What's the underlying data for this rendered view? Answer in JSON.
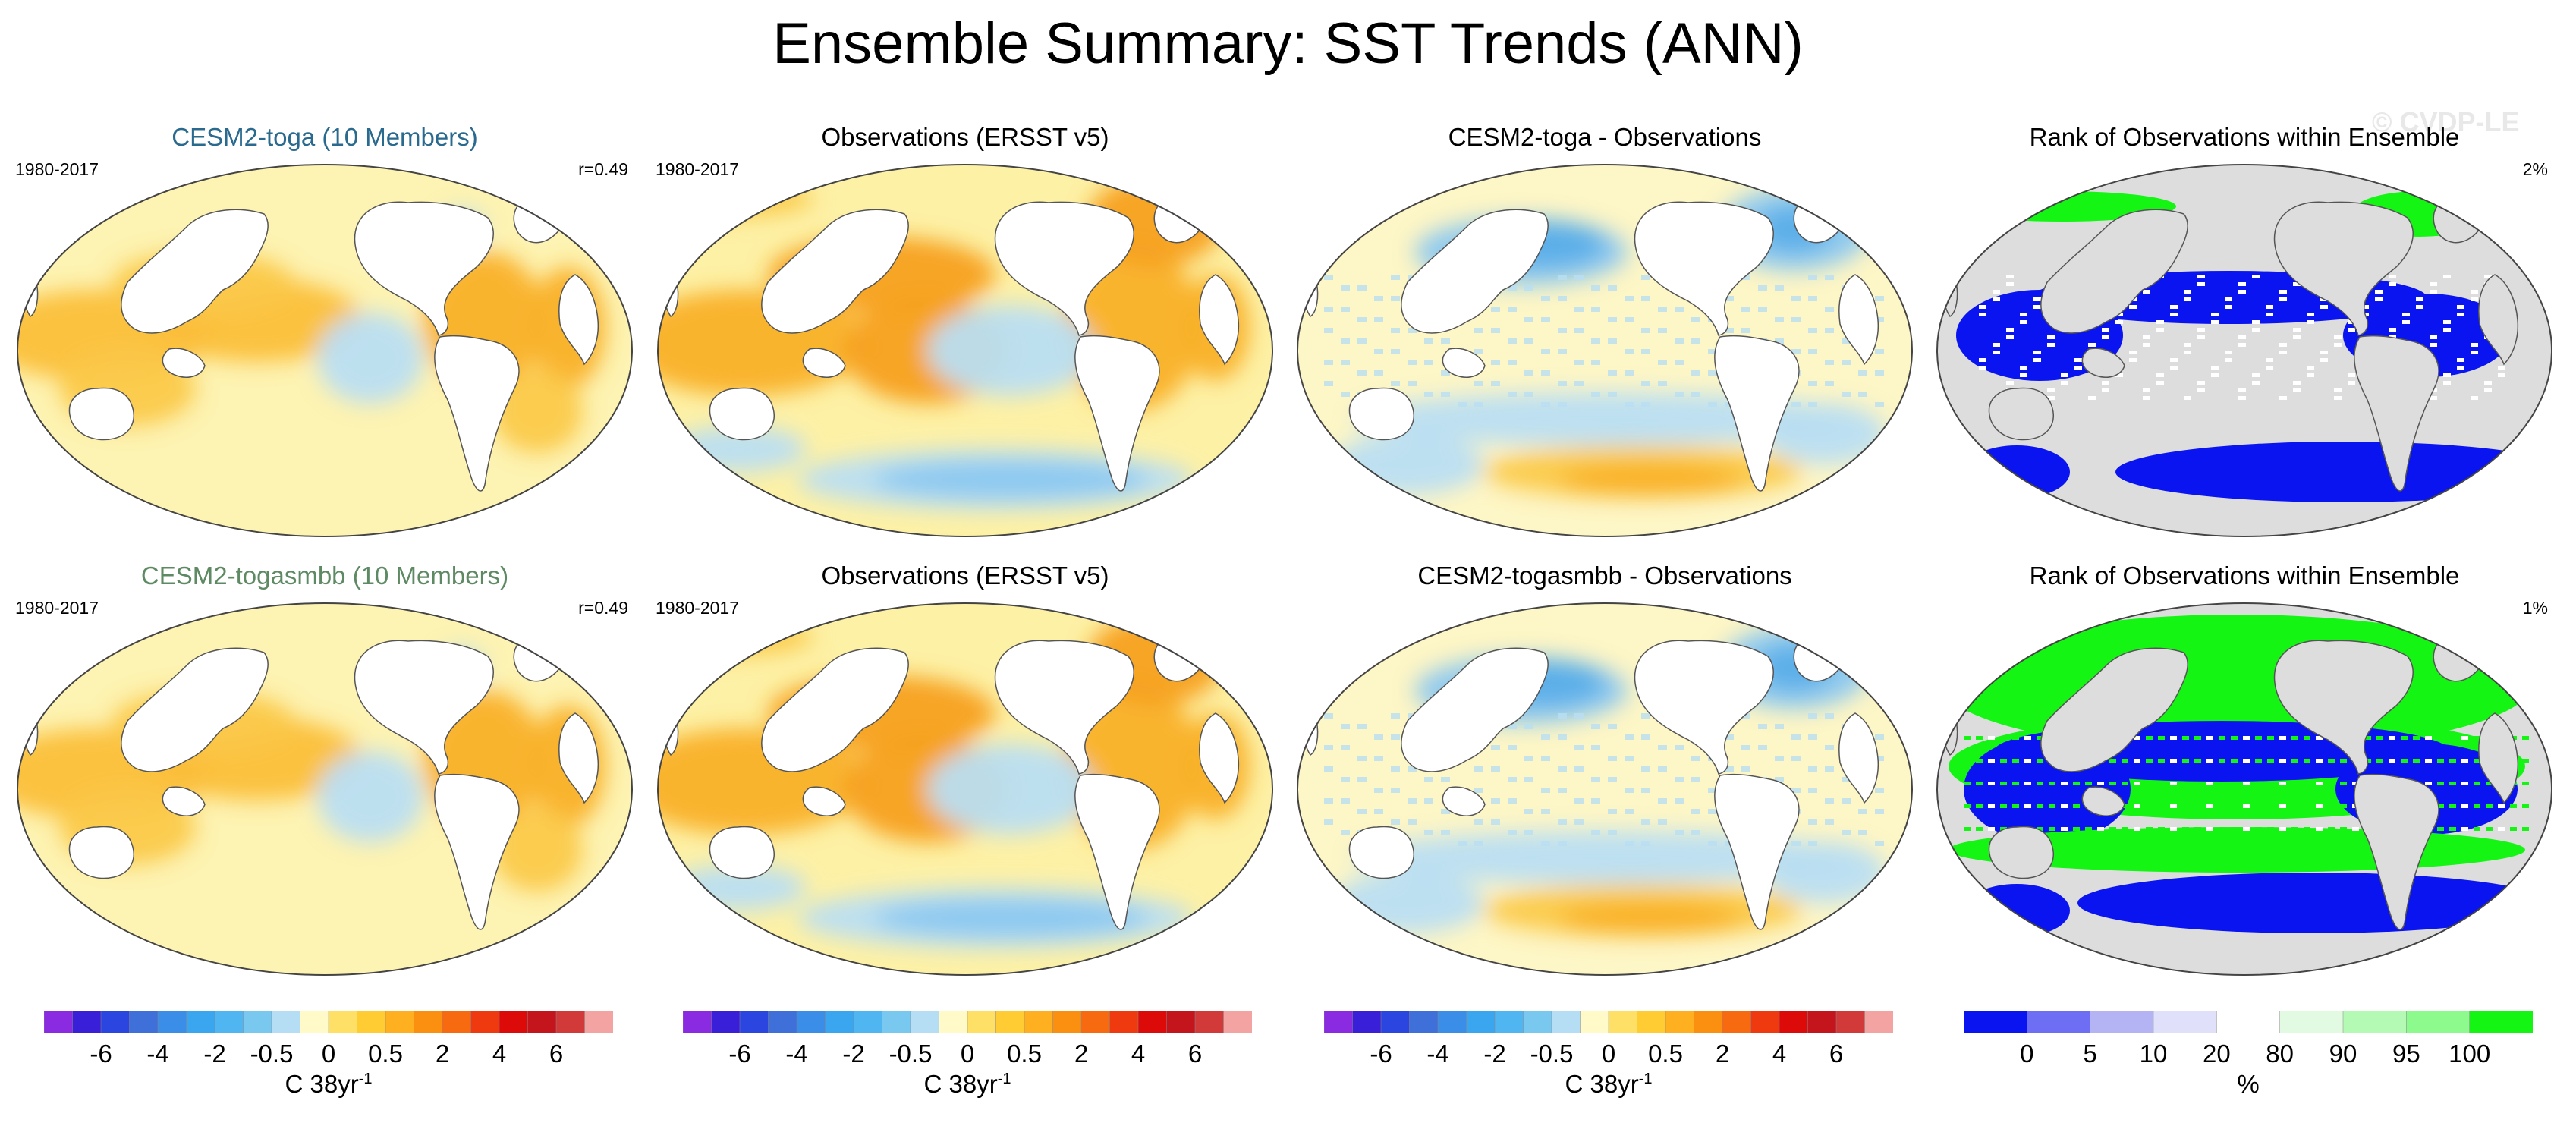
{
  "title": "Ensemble Summary: SST Trends (ANN)",
  "watermark": "© CVDP-LE",
  "chart_data": [
    {
      "type": "heatmap",
      "title": "CESM2-toga (10 Members)",
      "title_color": "#2a6a8e",
      "period": "1980-2017",
      "stat": "r=0.49",
      "colorbar": "trend"
    },
    {
      "type": "heatmap",
      "title": "Observations (ERSST v5)",
      "title_color": "#000000",
      "period": "1980-2017",
      "stat": "",
      "colorbar": "trend"
    },
    {
      "type": "heatmap",
      "title": "CESM2-toga - Observations",
      "title_color": "#000000",
      "period": "",
      "stat": "",
      "colorbar": "trend"
    },
    {
      "type": "heatmap",
      "title": "Rank of Observations within Ensemble",
      "title_color": "#000000",
      "period": "",
      "stat": "2%",
      "colorbar": "rank"
    },
    {
      "type": "heatmap",
      "title": "CESM2-togasmbb (10 Members)",
      "title_color": "#5e8a63",
      "period": "1980-2017",
      "stat": "r=0.49",
      "colorbar": "trend"
    },
    {
      "type": "heatmap",
      "title": "Observations (ERSST v5)",
      "title_color": "#000000",
      "period": "1980-2017",
      "stat": "",
      "colorbar": "trend"
    },
    {
      "type": "heatmap",
      "title": "CESM2-togasmbb - Observations",
      "title_color": "#000000",
      "period": "",
      "stat": "",
      "colorbar": "trend"
    },
    {
      "type": "heatmap",
      "title": "Rank of Observations within Ensemble",
      "title_color": "#000000",
      "period": "",
      "stat": "1%",
      "colorbar": "rank"
    }
  ],
  "colorbars": {
    "trend": {
      "colors": [
        "#8a2be2",
        "#3a1fd9",
        "#2b45e0",
        "#3f6fd9",
        "#3a8ee8",
        "#3aa6f0",
        "#4fb6f2",
        "#78c8f0",
        "#b5ddf3",
        "#fffac8",
        "#ffe066",
        "#ffcc33",
        "#ffb020",
        "#fb9010",
        "#f86a10",
        "#ef3a10",
        "#dd0a0a",
        "#c4141c",
        "#d23a3a",
        "#f4a3a3"
      ],
      "tick_labels": [
        "-6",
        "-4",
        "-2",
        "-0.5",
        "0",
        "0.5",
        "2",
        "4",
        "6"
      ],
      "tick_bounds": [
        2,
        4,
        6,
        8,
        10,
        12,
        14,
        16,
        18
      ],
      "unit_prefix": "C 38yr",
      "unit_exp": "-1"
    },
    "rank": {
      "colors": [
        "#0a14f0",
        "#6e6ef5",
        "#b4b4f5",
        "#e0e0fa",
        "#ffffff",
        "#e2fae2",
        "#b4fab4",
        "#8cfa8c",
        "#14f514"
      ],
      "tick_labels": [
        "0",
        "5",
        "10",
        "20",
        "80",
        "90",
        "95",
        "100"
      ],
      "tick_bounds": [
        1,
        2,
        3,
        4,
        5,
        6,
        7,
        8
      ],
      "unit_prefix": "%",
      "unit_exp": ""
    }
  }
}
